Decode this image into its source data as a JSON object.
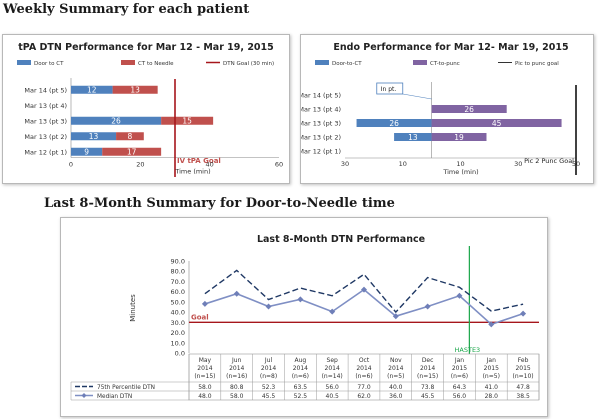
{
  "page": {
    "title_weekly": "Weekly Summary for each patient",
    "title_monthly": "Last 8-Month Summary for Door-to-Needle time"
  },
  "colors": {
    "blue": "#4f81bd",
    "red": "#c0504d",
    "purple": "#8064a2",
    "darkred": "#a6161c",
    "navy": "#1f3864",
    "green": "#1aa64a"
  },
  "chart_data": [
    {
      "type": "bar",
      "title": "tPA DTN Performance for Mar 12 - Mar 19, 2015",
      "categories": [
        "Mar 14 (pt 5)",
        "Mar 13 (pt 4)",
        "Mar 13 (pt 3)",
        "Mar 13 (pt 2)",
        "Mar 12 (pt 1)"
      ],
      "series": [
        {
          "name": "Door to CT",
          "values": [
            12,
            null,
            26,
            13,
            9
          ]
        },
        {
          "name": "CT to Needle",
          "values": [
            13,
            null,
            15,
            8,
            17
          ]
        }
      ],
      "reference_line": {
        "name": "DTN Goal (30 min)",
        "value": 30,
        "label": "IV tPA Goal"
      },
      "xlabel": "Time (min)",
      "xlim": [
        0,
        60
      ],
      "xticks": [
        "0",
        "20",
        "40",
        "60"
      ]
    },
    {
      "type": "bar",
      "title": "Endo Performance for Mar 12- Mar 19, 2015",
      "categories": [
        "Mar 14 (pt 5)",
        "Mar 13 (pt 4)",
        "Mar 13 (pt 3)",
        "Mar 13 (pt 2)",
        "Mar 12 (pt 1)"
      ],
      "series": [
        {
          "name": "Door-to-CT",
          "values": [
            null,
            null,
            26,
            13,
            null
          ]
        },
        {
          "name": "CT-to-punc",
          "values": [
            null,
            26,
            45,
            19,
            null
          ]
        }
      ],
      "reference_line": {
        "name": "Pic to punc goal",
        "value": 50,
        "label": "Pic 2 Punc Goal"
      },
      "annotation": "In pt.",
      "xlabel": "Time (min)",
      "xlim": [
        -30,
        50
      ],
      "xticks": [
        "30",
        "10",
        "10",
        "30",
        "50"
      ]
    },
    {
      "type": "line",
      "title": "Last 8-Month DTN Performance",
      "ylabel": "Minutes",
      "ylim": [
        0,
        90
      ],
      "yticks": [
        "0.0",
        "10.0",
        "20.0",
        "30.0",
        "40.0",
        "50.0",
        "60.0",
        "70.0",
        "80.0",
        "90.0"
      ],
      "categories": [
        [
          "May",
          "2014",
          "(n=15)"
        ],
        [
          "Jun",
          "2014",
          "(n=16)"
        ],
        [
          "Jul",
          "2014",
          "(n=8)"
        ],
        [
          "Aug",
          "2014",
          "(n=6)"
        ],
        [
          "Sep",
          "2014",
          "(n=14)"
        ],
        [
          "Oct",
          "2014",
          "(n=6)"
        ],
        [
          "Nov",
          "2014",
          "(n=5)"
        ],
        [
          "Dec",
          "2014",
          "(n=15)"
        ],
        [
          "Jan",
          "2015",
          "(n=6)"
        ],
        [
          "Jan",
          "2015",
          "(n=5)"
        ],
        [
          "Feb",
          "2015",
          "(n=10)"
        ]
      ],
      "series": [
        {
          "name": "75th Percentile DTN",
          "values": [
            "58.0",
            "80.8",
            "52.3",
            "63.5",
            "56.0",
            "77.0",
            "40.0",
            "73.8",
            "64.3",
            "41.0",
            "47.8"
          ]
        },
        {
          "name": "Median DTN",
          "values": [
            "48.0",
            "58.0",
            "45.5",
            "52.5",
            "40.5",
            "62.0",
            "36.0",
            "45.5",
            "56.0",
            "28.0",
            "38.5"
          ]
        }
      ],
      "goal": {
        "label": "Goal",
        "value": 30
      },
      "marker": {
        "label": "HASTE3",
        "after_index": 8
      }
    }
  ]
}
